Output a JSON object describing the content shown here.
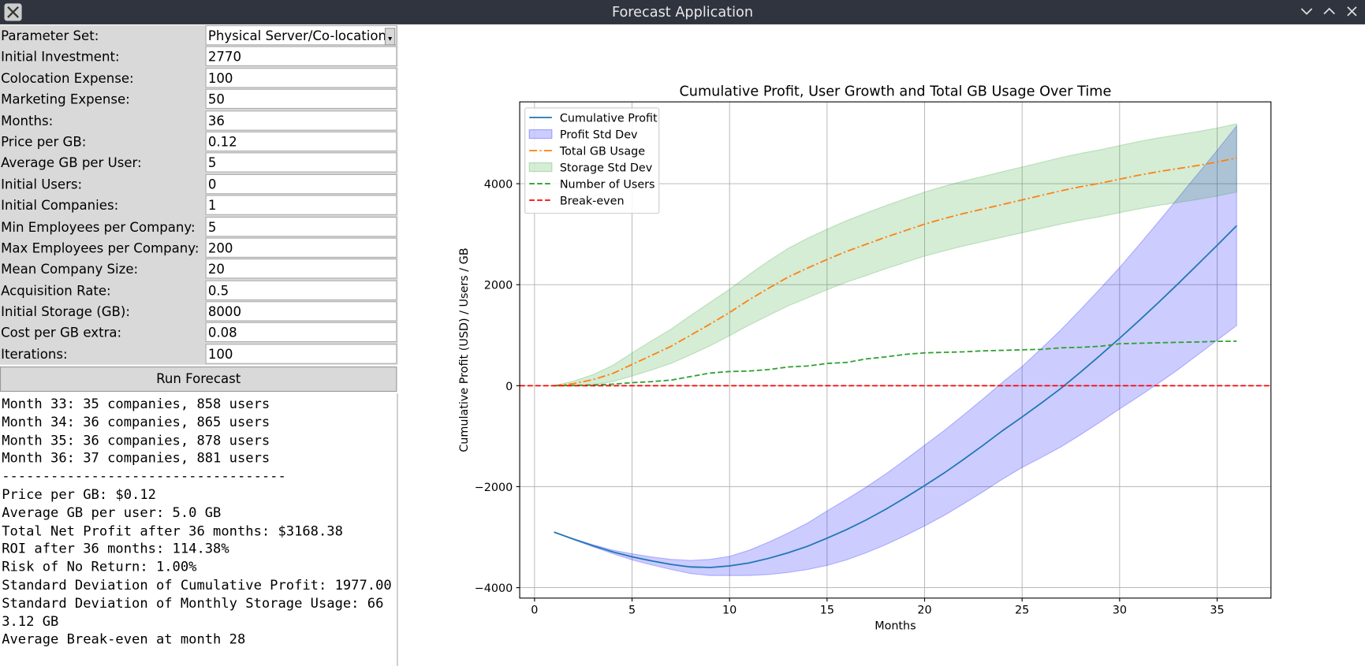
{
  "window": {
    "title": "Forecast Application"
  },
  "form": [
    {
      "label": "Parameter Set:",
      "value": "Physical Server/Co-location"
    },
    {
      "label": "Initial Investment:",
      "value": "2770"
    },
    {
      "label": "Colocation Expense:",
      "value": "100"
    },
    {
      "label": "Marketing Expense:",
      "value": "50"
    },
    {
      "label": "Months:",
      "value": "36"
    },
    {
      "label": "Price per GB:",
      "value": "0.12"
    },
    {
      "label": "Average GB per User:",
      "value": "5"
    },
    {
      "label": "Initial Users:",
      "value": "0"
    },
    {
      "label": "Initial Companies:",
      "value": "1"
    },
    {
      "label": "Min Employees per Company:",
      "value": "5"
    },
    {
      "label": "Max Employees per Company:",
      "value": "200"
    },
    {
      "label": "Mean Company Size:",
      "value": "20"
    },
    {
      "label": "Acquisition Rate:",
      "value": "0.5"
    },
    {
      "label": "Initial Storage (GB):",
      "value": "8000"
    },
    {
      "label": "Cost per GB extra:",
      "value": "0.08"
    },
    {
      "label": "Iterations:",
      "value": "100"
    }
  ],
  "button": "Run Forecast",
  "output": [
    "Month 33: 35 companies, 858 users",
    "Month 34: 36 companies, 865 users",
    "Month 35: 36 companies, 878 users",
    "Month 36: 37 companies, 881 users",
    "-----------------------------------",
    "Price per GB: $0.12",
    "Average GB per user: 5.0 GB",
    "Total Net Profit after 36 months: $3168.38",
    "ROI after 36 months: 114.38%",
    "Risk of No Return: 1.00%",
    "Standard Deviation of Cumulative Profit: 1977.00",
    "Standard Deviation of Monthly Storage Usage: 663.12 GB",
    "Average Break-even at month 28"
  ],
  "chart_data": {
    "type": "line",
    "title": "Cumulative Profit, User Growth and Total GB Usage Over Time",
    "x_label": "Months",
    "y_label": "Cumulative Profit (USD) / Users / GB",
    "x": [
      1,
      2,
      3,
      4,
      5,
      6,
      7,
      8,
      9,
      10,
      11,
      12,
      13,
      14,
      15,
      16,
      17,
      18,
      19,
      20,
      21,
      22,
      23,
      24,
      25,
      26,
      27,
      28,
      29,
      30,
      31,
      32,
      33,
      34,
      35,
      36
    ],
    "series": [
      {
        "name": "Cumulative Profit",
        "color": "#1f77b4",
        "dash": "solid",
        "values": [
          -2900,
          -3040,
          -3170,
          -3290,
          -3390,
          -3470,
          -3540,
          -3590,
          -3600,
          -3570,
          -3510,
          -3420,
          -3310,
          -3180,
          -3020,
          -2850,
          -2660,
          -2450,
          -2220,
          -1980,
          -1730,
          -1460,
          -1180,
          -890,
          -620,
          -340,
          -50,
          270,
          600,
          940,
          1290,
          1650,
          2020,
          2400,
          2780,
          3168.38
        ],
        "band": {
          "name": "Profit Std Dev",
          "color": "#0000ff",
          "values": [
            0,
            10,
            20,
            35,
            60,
            80,
            100,
            130,
            160,
            190,
            250,
            320,
            390,
            460,
            540,
            600,
            650,
            700,
            750,
            800,
            840,
            880,
            920,
            960,
            1000,
            1080,
            1160,
            1240,
            1320,
            1400,
            1500,
            1600,
            1700,
            1790,
            1880,
            1977
          ]
        }
      },
      {
        "name": "Total GB Usage",
        "color": "#ff7f0e",
        "dash": "dashdot",
        "values": [
          0,
          40,
          120,
          240,
          420,
          600,
          780,
          1000,
          1220,
          1450,
          1700,
          1930,
          2150,
          2330,
          2500,
          2660,
          2800,
          2940,
          3070,
          3200,
          3310,
          3410,
          3500,
          3590,
          3680,
          3770,
          3860,
          3940,
          4010,
          4090,
          4170,
          4240,
          4300,
          4360,
          4430,
          4510
        ],
        "band": {
          "name": "Storage Std Dev",
          "color": "#2ca02c",
          "values": [
            0,
            50,
            100,
            160,
            230,
            290,
            340,
            390,
            430,
            460,
            500,
            540,
            570,
            590,
            600,
            610,
            620,
            625,
            630,
            635,
            640,
            643,
            646,
            649,
            652,
            655,
            658,
            661,
            663,
            665,
            667,
            669,
            671,
            672,
            674,
            675
          ]
        }
      },
      {
        "name": "Number of Users",
        "color": "#2ca02c",
        "dash": "dashed",
        "values": [
          0,
          5,
          15,
          30,
          60,
          80,
          110,
          180,
          250,
          280,
          290,
          320,
          370,
          390,
          440,
          460,
          530,
          570,
          620,
          650,
          660,
          670,
          690,
          700,
          710,
          720,
          750,
          760,
          780,
          830,
          840,
          850,
          858,
          865,
          878,
          881
        ]
      }
    ],
    "hline": {
      "name": "Break-even",
      "value": 0,
      "color": "#ff0000"
    },
    "xlim": [
      -0.76,
      37.76
    ],
    "ylim": [
      -4207,
      5621
    ],
    "xticks": [
      0,
      5,
      10,
      15,
      20,
      25,
      30,
      35
    ],
    "yticks": [
      {
        "value": -4000,
        "label": "−4000"
      },
      {
        "value": -2000,
        "label": "−2000"
      },
      0,
      2000,
      4000
    ],
    "grid": true,
    "legend": "upper left"
  }
}
